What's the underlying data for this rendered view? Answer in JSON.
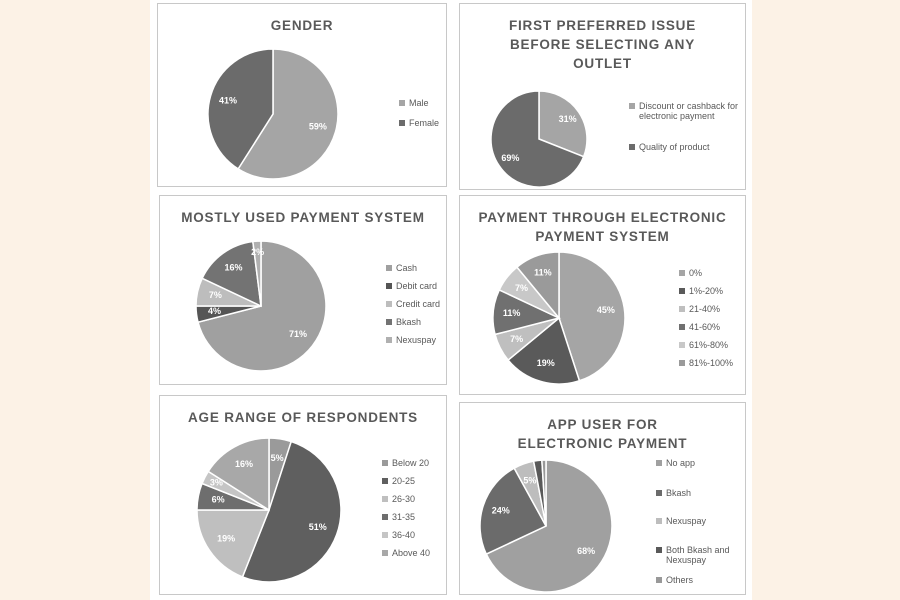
{
  "chart_data": [
    {
      "type": "pie",
      "title": "GENDER",
      "categories": [
        "Male",
        "Female"
      ],
      "values": [
        59,
        41
      ],
      "value_labels": [
        "59%",
        "41%"
      ],
      "colors": [
        "#a5a5a5",
        "#6b6b6b"
      ]
    },
    {
      "type": "pie",
      "title": "FIRST PREFERRED ISSUE BEFORE SELECTING ANY OUTLET",
      "categories": [
        "Discount or cashback for electronic payment",
        "Quality of product"
      ],
      "values": [
        31,
        69
      ],
      "value_labels": [
        "31%",
        "69%"
      ],
      "colors": [
        "#a5a5a5",
        "#6b6b6b"
      ]
    },
    {
      "type": "pie",
      "title": "MOSTLY USED PAYMENT SYSTEM",
      "categories": [
        "Cash",
        "Debit card",
        "Credit card",
        "Bkash",
        "Nexuspay"
      ],
      "values": [
        71,
        4,
        7,
        16,
        2
      ],
      "value_labels": [
        "71%",
        "4%",
        "7%",
        "16%",
        "2%"
      ],
      "colors": [
        "#a0a0a0",
        "#555555",
        "#bdbdbd",
        "#737373",
        "#b0b0b0"
      ]
    },
    {
      "type": "pie",
      "title": "PAYMENT THROUGH ELECTRONIC PAYMENT SYSTEM",
      "categories": [
        "0%",
        "1%-20%",
        "21-40%",
        "41-60%",
        "61%-80%",
        "81%-100%"
      ],
      "values": [
        45,
        19,
        7,
        11,
        7,
        11
      ],
      "value_labels": [
        "45%",
        "19%",
        "7%",
        "11%",
        "7%",
        "11%"
      ],
      "colors": [
        "#a5a5a5",
        "#5a5a5a",
        "#bfbfbf",
        "#707070",
        "#c8c8c8",
        "#9a9a9a"
      ]
    },
    {
      "type": "pie",
      "title": "AGE RANGE OF RESPONDENTS",
      "categories": [
        "Below 20",
        "20-25",
        "26-30",
        "31-35",
        "36-40",
        "Above 40"
      ],
      "values": [
        5,
        51,
        19,
        6,
        3,
        16
      ],
      "value_labels": [
        "5%",
        "51%",
        "19%",
        "6%",
        "3%",
        "16%"
      ],
      "colors": [
        "#9a9a9a",
        "#5f5f5f",
        "#bfbfbf",
        "#6e6e6e",
        "#c5c5c5",
        "#a8a8a8"
      ]
    },
    {
      "type": "pie",
      "title": "APP USER FOR ELECTRONIC PAYMENT",
      "categories": [
        "No app",
        "Bkash",
        "Nexuspay",
        "Both Bkash and Nexuspay",
        "Others"
      ],
      "values": [
        68,
        24,
        5,
        2,
        1
      ],
      "value_labels": [
        "68%",
        "24%",
        "5%",
        null,
        null
      ],
      "colors": [
        "#a0a0a0",
        "#6b6b6b",
        "#bdbdbd",
        "#595959",
        "#999999"
      ]
    }
  ]
}
